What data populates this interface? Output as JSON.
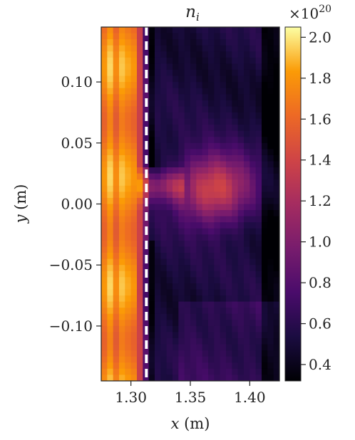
{
  "chart_data": {
    "type": "heatmap",
    "title": "n_i",
    "title_main": "n",
    "title_sub": "i",
    "xlabel": "x (m)",
    "xlabel_var": "x",
    "xlabel_unit": " (m)",
    "ylabel": "y (m)",
    "ylabel_var": "y",
    "ylabel_unit": " (m)",
    "xlim": [
      1.275,
      1.425
    ],
    "ylim": [
      -0.145,
      0.145
    ],
    "xticks": [
      1.3,
      1.35,
      1.4
    ],
    "xtick_labels": [
      "1.30",
      "1.35",
      "1.40"
    ],
    "yticks": [
      0.1,
      0.05,
      0.0,
      -0.05,
      -0.1
    ],
    "ytick_labels": [
      "0.10",
      "0.05",
      "0.00",
      "−0.05",
      "−0.10"
    ],
    "colormap": "inferno",
    "colorbar": {
      "range": [
        0.32,
        2.05
      ],
      "ticks": [
        2.0,
        1.8,
        1.6,
        1.4,
        1.2,
        1.0,
        0.8,
        0.6,
        0.4
      ],
      "tick_labels": [
        "2.0",
        "1.8",
        "1.6",
        "1.4",
        "1.2",
        "1.0",
        "0.8",
        "0.6",
        "0.4"
      ],
      "multiplier": "×10",
      "multiplier_base": "×10",
      "multiplier_exp": "20"
    },
    "annotations": [
      {
        "type": "vertical-dashed-line",
        "x": 1.313,
        "color": "#ffffff"
      }
    ],
    "features": {
      "edge_band_x_max": 1.305,
      "edge_band_value": 1.75,
      "blob_center": [
        1.37,
        0.012
      ],
      "blob_value": 1.45,
      "background_value": 0.52,
      "right_dark_edge_x": 1.41
    }
  }
}
